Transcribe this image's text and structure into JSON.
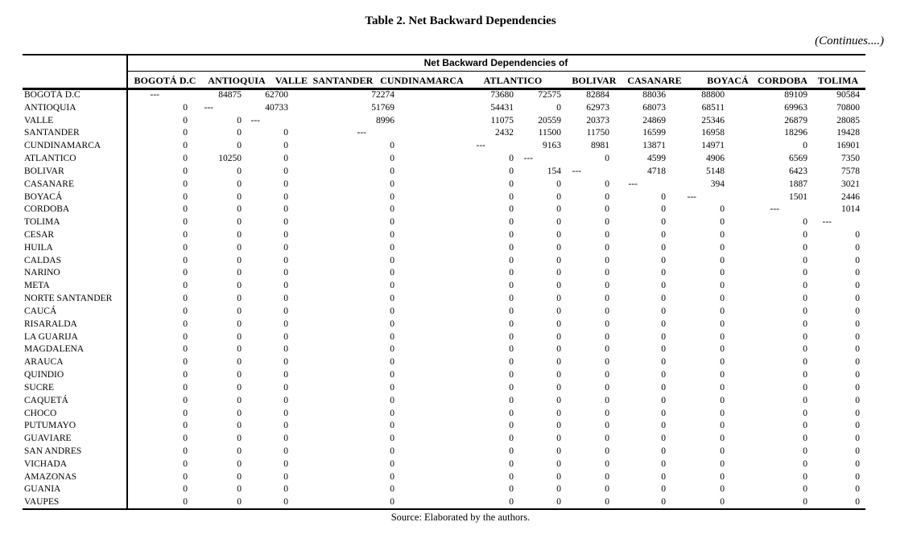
{
  "title": "Table 2. Net Backward Dependencies",
  "continues_note": "(Continues....)",
  "source_note": "Source: Elaborated by the authors.",
  "table": {
    "span_header": "Net Backward Dependencies of",
    "columns": [
      "BOGOTÁ D.C",
      "ANTIOQUIA",
      "VALLE",
      "SANTANDER",
      "CUNDINAMARCA",
      "ATLANTICO",
      "BOLIVAR",
      "CASANARE",
      "BOYACÁ",
      "CORDOBA",
      "TOLIMA"
    ],
    "rows": [
      {
        "label": "BOGOTÁ D.C",
        "values": [
          "---",
          84875,
          62700,
          72274,
          73680,
          72575,
          82884,
          88036,
          88800,
          89109,
          90584
        ]
      },
      {
        "label": "ANTIOQUIA",
        "values": [
          0,
          "---",
          40733,
          51769,
          54431,
          0,
          62973,
          68073,
          68511,
          69963,
          70800
        ]
      },
      {
        "label": "VALLE",
        "values": [
          0,
          0,
          "---",
          8996,
          11075,
          20559,
          20373,
          24869,
          25346,
          26879,
          28085
        ]
      },
      {
        "label": "SANTANDER",
        "values": [
          0,
          0,
          0,
          "---",
          2432,
          11500,
          11750,
          16599,
          16958,
          18296,
          19428
        ]
      },
      {
        "label": "CUNDINAMARCA",
        "values": [
          0,
          0,
          0,
          0,
          "---",
          9163,
          8981,
          13871,
          14971,
          0,
          16901
        ]
      },
      {
        "label": "ATLANTICO",
        "values": [
          0,
          10250,
          0,
          0,
          0,
          "---",
          0,
          4599,
          4906,
          6569,
          7350
        ]
      },
      {
        "label": "BOLIVAR",
        "values": [
          0,
          0,
          0,
          0,
          0,
          154,
          "---",
          4718,
          5148,
          6423,
          7578
        ]
      },
      {
        "label": "CASANARE",
        "values": [
          0,
          0,
          0,
          0,
          0,
          0,
          0,
          "---",
          394,
          1887,
          3021
        ]
      },
      {
        "label": "BOYACÁ",
        "values": [
          0,
          0,
          0,
          0,
          0,
          0,
          0,
          0,
          "---",
          1501,
          2446
        ]
      },
      {
        "label": "CORDOBA",
        "values": [
          0,
          0,
          0,
          0,
          0,
          0,
          0,
          0,
          0,
          "---",
          1014
        ]
      },
      {
        "label": "TOLIMA",
        "values": [
          0,
          0,
          0,
          0,
          0,
          0,
          0,
          0,
          0,
          0,
          "---"
        ]
      },
      {
        "label": "CESAR",
        "values": [
          0,
          0,
          0,
          0,
          0,
          0,
          0,
          0,
          0,
          0,
          0
        ]
      },
      {
        "label": "HUILA",
        "values": [
          0,
          0,
          0,
          0,
          0,
          0,
          0,
          0,
          0,
          0,
          0
        ]
      },
      {
        "label": "CALDAS",
        "values": [
          0,
          0,
          0,
          0,
          0,
          0,
          0,
          0,
          0,
          0,
          0
        ]
      },
      {
        "label": "NARINO",
        "values": [
          0,
          0,
          0,
          0,
          0,
          0,
          0,
          0,
          0,
          0,
          0
        ]
      },
      {
        "label": "META",
        "values": [
          0,
          0,
          0,
          0,
          0,
          0,
          0,
          0,
          0,
          0,
          0
        ]
      },
      {
        "label": "NORTE SANTANDER",
        "values": [
          0,
          0,
          0,
          0,
          0,
          0,
          0,
          0,
          0,
          0,
          0
        ]
      },
      {
        "label": "CAUCÁ",
        "values": [
          0,
          0,
          0,
          0,
          0,
          0,
          0,
          0,
          0,
          0,
          0
        ]
      },
      {
        "label": "RISARALDA",
        "values": [
          0,
          0,
          0,
          0,
          0,
          0,
          0,
          0,
          0,
          0,
          0
        ]
      },
      {
        "label": "LA GUARIJA",
        "values": [
          0,
          0,
          0,
          0,
          0,
          0,
          0,
          0,
          0,
          0,
          0
        ]
      },
      {
        "label": "MAGDALENA",
        "values": [
          0,
          0,
          0,
          0,
          0,
          0,
          0,
          0,
          0,
          0,
          0
        ]
      },
      {
        "label": "ARAUCA",
        "values": [
          0,
          0,
          0,
          0,
          0,
          0,
          0,
          0,
          0,
          0,
          0
        ]
      },
      {
        "label": "QUINDIO",
        "values": [
          0,
          0,
          0,
          0,
          0,
          0,
          0,
          0,
          0,
          0,
          0
        ]
      },
      {
        "label": "SUCRE",
        "values": [
          0,
          0,
          0,
          0,
          0,
          0,
          0,
          0,
          0,
          0,
          0
        ]
      },
      {
        "label": "CAQUETÁ",
        "values": [
          0,
          0,
          0,
          0,
          0,
          0,
          0,
          0,
          0,
          0,
          0
        ]
      },
      {
        "label": "CHOCO",
        "values": [
          0,
          0,
          0,
          0,
          0,
          0,
          0,
          0,
          0,
          0,
          0
        ]
      },
      {
        "label": "PUTUMAYO",
        "values": [
          0,
          0,
          0,
          0,
          0,
          0,
          0,
          0,
          0,
          0,
          0
        ]
      },
      {
        "label": "GUAVIARE",
        "values": [
          0,
          0,
          0,
          0,
          0,
          0,
          0,
          0,
          0,
          0,
          0
        ]
      },
      {
        "label": "SAN ANDRES",
        "values": [
          0,
          0,
          0,
          0,
          0,
          0,
          0,
          0,
          0,
          0,
          0
        ]
      },
      {
        "label": "VICHADA",
        "values": [
          0,
          0,
          0,
          0,
          0,
          0,
          0,
          0,
          0,
          0,
          0
        ]
      },
      {
        "label": "AMAZONAS",
        "values": [
          0,
          0,
          0,
          0,
          0,
          0,
          0,
          0,
          0,
          0,
          0
        ]
      },
      {
        "label": "GUANIA",
        "values": [
          0,
          0,
          0,
          0,
          0,
          0,
          0,
          0,
          0,
          0,
          0
        ]
      },
      {
        "label": "VAUPES",
        "values": [
          0,
          0,
          0,
          0,
          0,
          0,
          0,
          0,
          0,
          0,
          0
        ]
      }
    ]
  }
}
